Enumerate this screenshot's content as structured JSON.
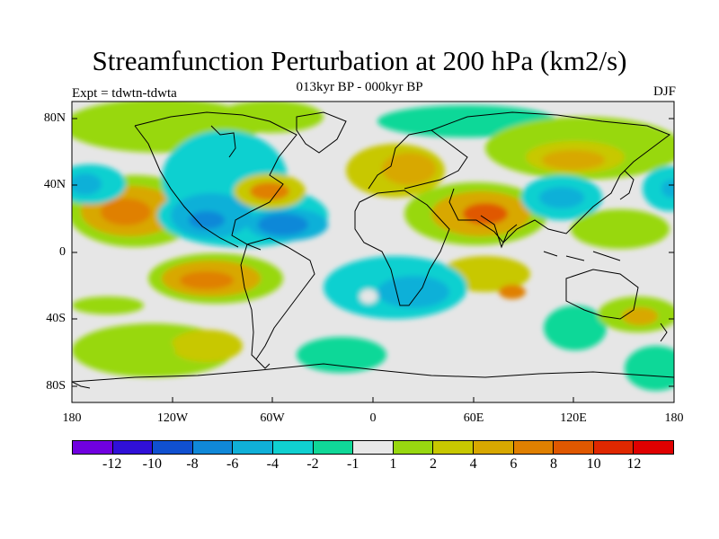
{
  "title": "Streamfunction Perturbation at 200 hPa (km2/s)",
  "subtitle": "013kyr BP - 000kyr BP",
  "left_label": "Expt = tdwtn-tdwta",
  "right_label": "DJF",
  "lat_ticks": [
    "80N",
    "40N",
    "0",
    "40S",
    "80S"
  ],
  "lon_ticks": [
    "180",
    "120W",
    "60W",
    "0",
    "60E",
    "120E",
    "180"
  ],
  "colorbar": {
    "colors": [
      "#7000e0",
      "#3010d8",
      "#1050d0",
      "#1088d8",
      "#10b0d8",
      "#10d0d0",
      "#10d898",
      "#e8e8e8",
      "#98d810",
      "#c8c800",
      "#d8a800",
      "#e08000",
      "#e05800",
      "#e02800",
      "#e00000"
    ],
    "labels": [
      "-12",
      "-10",
      "-8",
      "-6",
      "-4",
      "-2",
      "-1",
      "1",
      "2",
      "4",
      "6",
      "8",
      "10",
      "12"
    ]
  }
}
